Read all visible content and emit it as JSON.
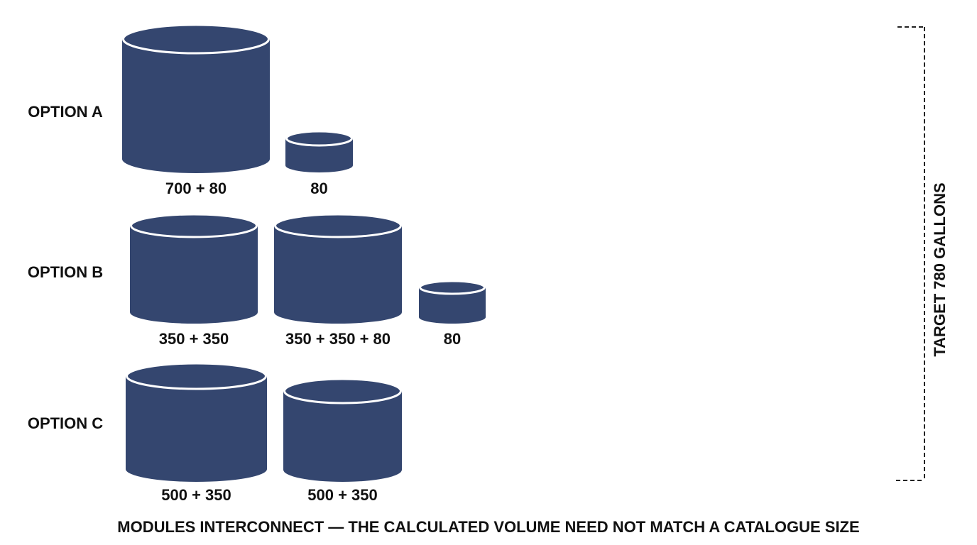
{
  "target": "TARGET 780 GALLONS",
  "footer": "MODULES INTERCONNECT — THE CALCULATED VOLUME NEED NOT MATCH A CATALOGUE SIZE",
  "options": [
    {
      "label": "OPTION A",
      "tanks": [
        "700 + 80",
        "80"
      ]
    },
    {
      "label": "OPTION B",
      "tanks": [
        "350 + 350",
        "350 + 350 + 80",
        "80"
      ]
    },
    {
      "label": "OPTION C",
      "tanks": [
        "500 + 350",
        "500 + 350"
      ]
    }
  ]
}
